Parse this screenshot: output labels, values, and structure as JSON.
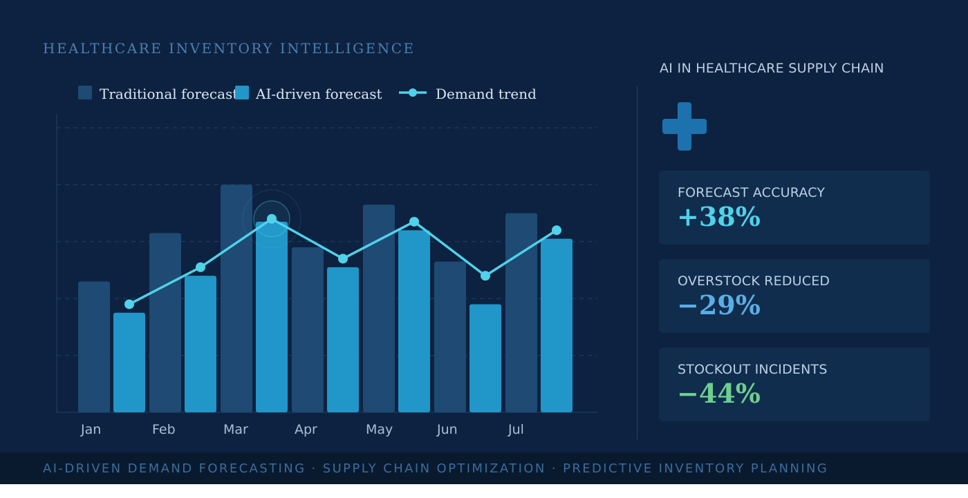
{
  "header": {
    "eyebrow": "HEALTHCARE INVENTORY INTELLIGENCE"
  },
  "chart_data": {
    "type": "bar",
    "categories": [
      "Jan",
      "Feb",
      "Mar",
      "Apr",
      "May",
      "Jun",
      "Jul"
    ],
    "series": [
      {
        "name": "Traditional forecast",
        "kind": "bar",
        "color": "#1e4a73",
        "values": [
          46,
          63,
          80,
          58,
          73,
          53,
          70
        ]
      },
      {
        "name": "AI-driven forecast",
        "kind": "bar",
        "color": "#2196c8",
        "values": [
          35,
          48,
          67,
          51,
          64,
          38,
          61
        ]
      },
      {
        "name": "Demand trend",
        "kind": "line",
        "color": "#4fd2ea",
        "values": [
          38,
          51,
          68,
          54,
          67,
          48,
          64
        ]
      }
    ],
    "highlight_category": "Mar",
    "ylim": [
      0,
      100
    ],
    "grid": true,
    "legend_position": "top-left"
  },
  "sidebar": {
    "title": "AI IN HEALTHCARE SUPPLY CHAIN",
    "icon": "medical-cross-icon",
    "stats": [
      {
        "label": "FORECAST ACCURACY",
        "value": "+38%",
        "color": "#4fd2ea"
      },
      {
        "label": "OVERSTOCK REDUCED",
        "value": "−29%",
        "color": "#5aaee6"
      },
      {
        "label": "STOCKOUT INCIDENTS",
        "value": "−44%",
        "color": "#6fcf8f"
      }
    ]
  },
  "footer": {
    "text": "AI-DRIVEN DEMAND FORECASTING · SUPPLY CHAIN OPTIMIZATION · PREDICTIVE INVENTORY PLANNING"
  }
}
